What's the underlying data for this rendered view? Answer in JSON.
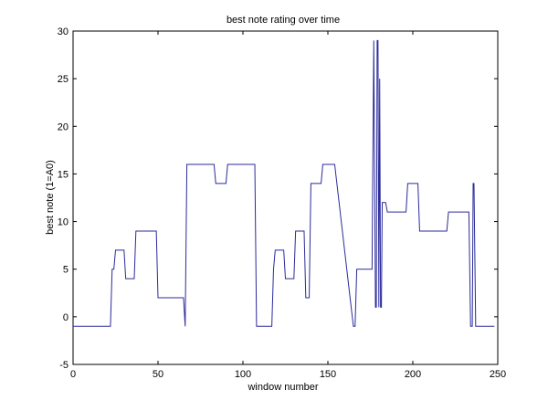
{
  "chart_data": {
    "type": "line",
    "title": "best note rating over time",
    "xlabel": "window number",
    "ylabel": "best note (1=A0)",
    "xlim": [
      0,
      250
    ],
    "ylim": [
      -5,
      30
    ],
    "xticks": [
      0,
      50,
      100,
      150,
      200,
      250
    ],
    "yticks": [
      -5,
      0,
      5,
      10,
      15,
      20,
      25,
      30
    ],
    "grid": false,
    "legend": "none",
    "line_color": "#2a2a9c",
    "series": [
      {
        "x": [
          0,
          22,
          23,
          24,
          25,
          26,
          30,
          31,
          32,
          36,
          37,
          38,
          49,
          50,
          51,
          65,
          66,
          67,
          83,
          84,
          90,
          91,
          107,
          108,
          117,
          118,
          119,
          120,
          124,
          125,
          126,
          130,
          131,
          136,
          137,
          138,
          139,
          140,
          145,
          146,
          147,
          152,
          153,
          154,
          165,
          166,
          167,
          169,
          170,
          171,
          176,
          177,
          178,
          178.5,
          179,
          179.5,
          180,
          180.5,
          181,
          181.5,
          182,
          183,
          184,
          185,
          186,
          187,
          196,
          197,
          198,
          203,
          204,
          205,
          220,
          221,
          222,
          233,
          234,
          235,
          235.5,
          236,
          237,
          238,
          248
        ],
        "y": [
          -1,
          -1,
          5,
          5,
          7,
          7,
          7,
          4,
          4,
          4,
          9,
          9,
          9,
          2,
          2,
          2,
          -1,
          16,
          16,
          14,
          14,
          16,
          16,
          -1,
          -1,
          5,
          7,
          7,
          7,
          4,
          4,
          4,
          9,
          9,
          2,
          2,
          2,
          14,
          14,
          14,
          16,
          16,
          16,
          16,
          -1,
          -1,
          5,
          5,
          5,
          5,
          5,
          29,
          1,
          1,
          29,
          29,
          1,
          25,
          1,
          1,
          12,
          12,
          12,
          11,
          11,
          11,
          11,
          14,
          14,
          14,
          9,
          9,
          9,
          11,
          11,
          11,
          -1,
          -1,
          14,
          14,
          -1,
          -1,
          -1
        ]
      }
    ]
  }
}
